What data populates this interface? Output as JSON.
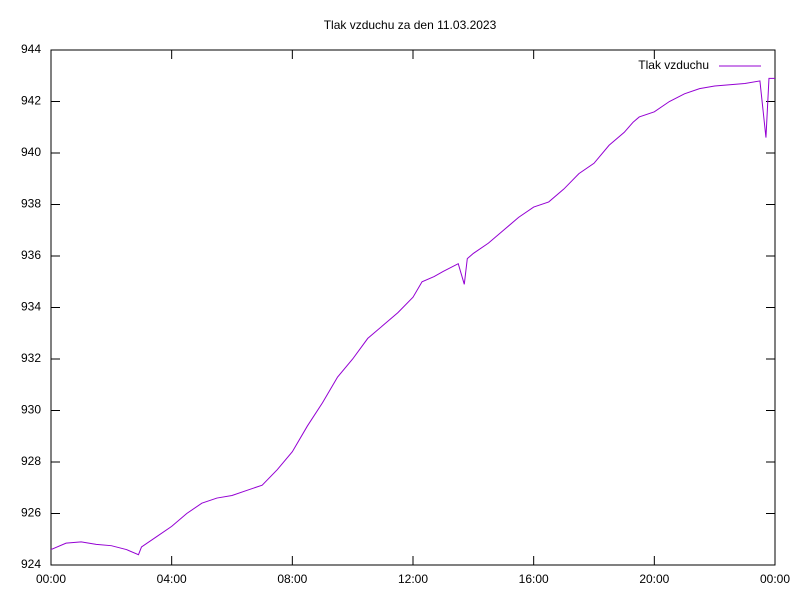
{
  "chart_data": {
    "type": "line",
    "title": "Tlak vzduchu za den 11.03.2023",
    "series": [
      {
        "name": "Tlak vzduchu",
        "color": "#9400d3",
        "x": [
          0,
          0.5,
          1,
          1.5,
          2,
          2.5,
          2.9,
          3,
          3.5,
          4,
          4.5,
          5,
          5.5,
          6,
          6.5,
          7,
          7.5,
          8,
          8.5,
          9,
          9.5,
          10,
          10.5,
          11,
          11.5,
          12,
          12.3,
          12.7,
          13,
          13.5,
          13.7,
          13.8,
          14,
          14.5,
          15,
          15.5,
          16,
          16.5,
          17,
          17.5,
          18,
          18.5,
          19,
          19.3,
          19.5,
          20,
          20.5,
          21,
          21.5,
          22,
          23,
          23.5,
          23.7,
          23.8,
          24
        ],
        "values": [
          924.6,
          924.85,
          924.9,
          924.8,
          924.75,
          924.6,
          924.4,
          924.7,
          925.1,
          925.5,
          926.0,
          926.4,
          926.6,
          926.7,
          926.9,
          927.1,
          927.7,
          928.4,
          929.4,
          930.3,
          931.3,
          932.0,
          932.8,
          933.3,
          933.8,
          934.4,
          935.0,
          935.2,
          935.4,
          935.7,
          934.9,
          935.9,
          936.1,
          936.5,
          937.0,
          937.5,
          937.9,
          938.1,
          938.6,
          939.2,
          939.6,
          940.3,
          940.8,
          941.2,
          941.4,
          941.6,
          942.0,
          942.3,
          942.5,
          942.6,
          942.7,
          942.8,
          940.6,
          942.9,
          942.9
        ]
      }
    ],
    "xlim": [
      0,
      24
    ],
    "xticks": [
      {
        "value": 0,
        "label": "00:00"
      },
      {
        "value": 4,
        "label": "04:00"
      },
      {
        "value": 8,
        "label": "08:00"
      },
      {
        "value": 12,
        "label": "12:00"
      },
      {
        "value": 16,
        "label": "16:00"
      },
      {
        "value": 20,
        "label": "20:00"
      },
      {
        "value": 24,
        "label": "00:00"
      }
    ],
    "ylim": [
      924,
      944
    ],
    "yticks": [
      924,
      926,
      928,
      930,
      932,
      934,
      936,
      938,
      940,
      942,
      944
    ],
    "legend": "top-right",
    "grid": false
  }
}
